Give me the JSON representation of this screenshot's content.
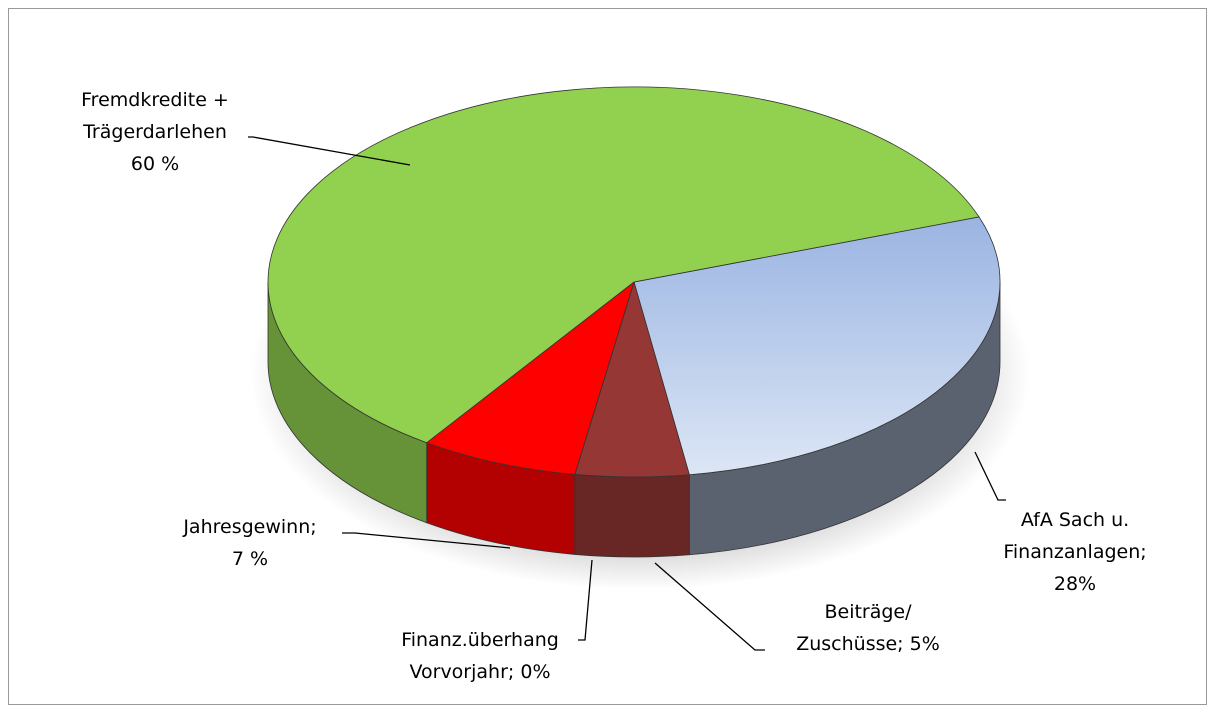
{
  "chart_data": {
    "type": "pie",
    "categories": [
      "AfA Sach u. Finanzanlagen;",
      "Beiträge/ Zuschüsse;",
      "Finanz.überhang Vorvorjahr;",
      "Jahresgewinn;",
      "Fremdkredite + Trägerdarlehen"
    ],
    "values": [
      28,
      5,
      0,
      7,
      60
    ],
    "value_labels": [
      "28%",
      "5%",
      "0%",
      "7 %",
      "60 %"
    ],
    "colors": [
      "#b4c7e7",
      "#953735",
      "#c0504d",
      "#ff0000",
      "#92d050"
    ]
  }
}
